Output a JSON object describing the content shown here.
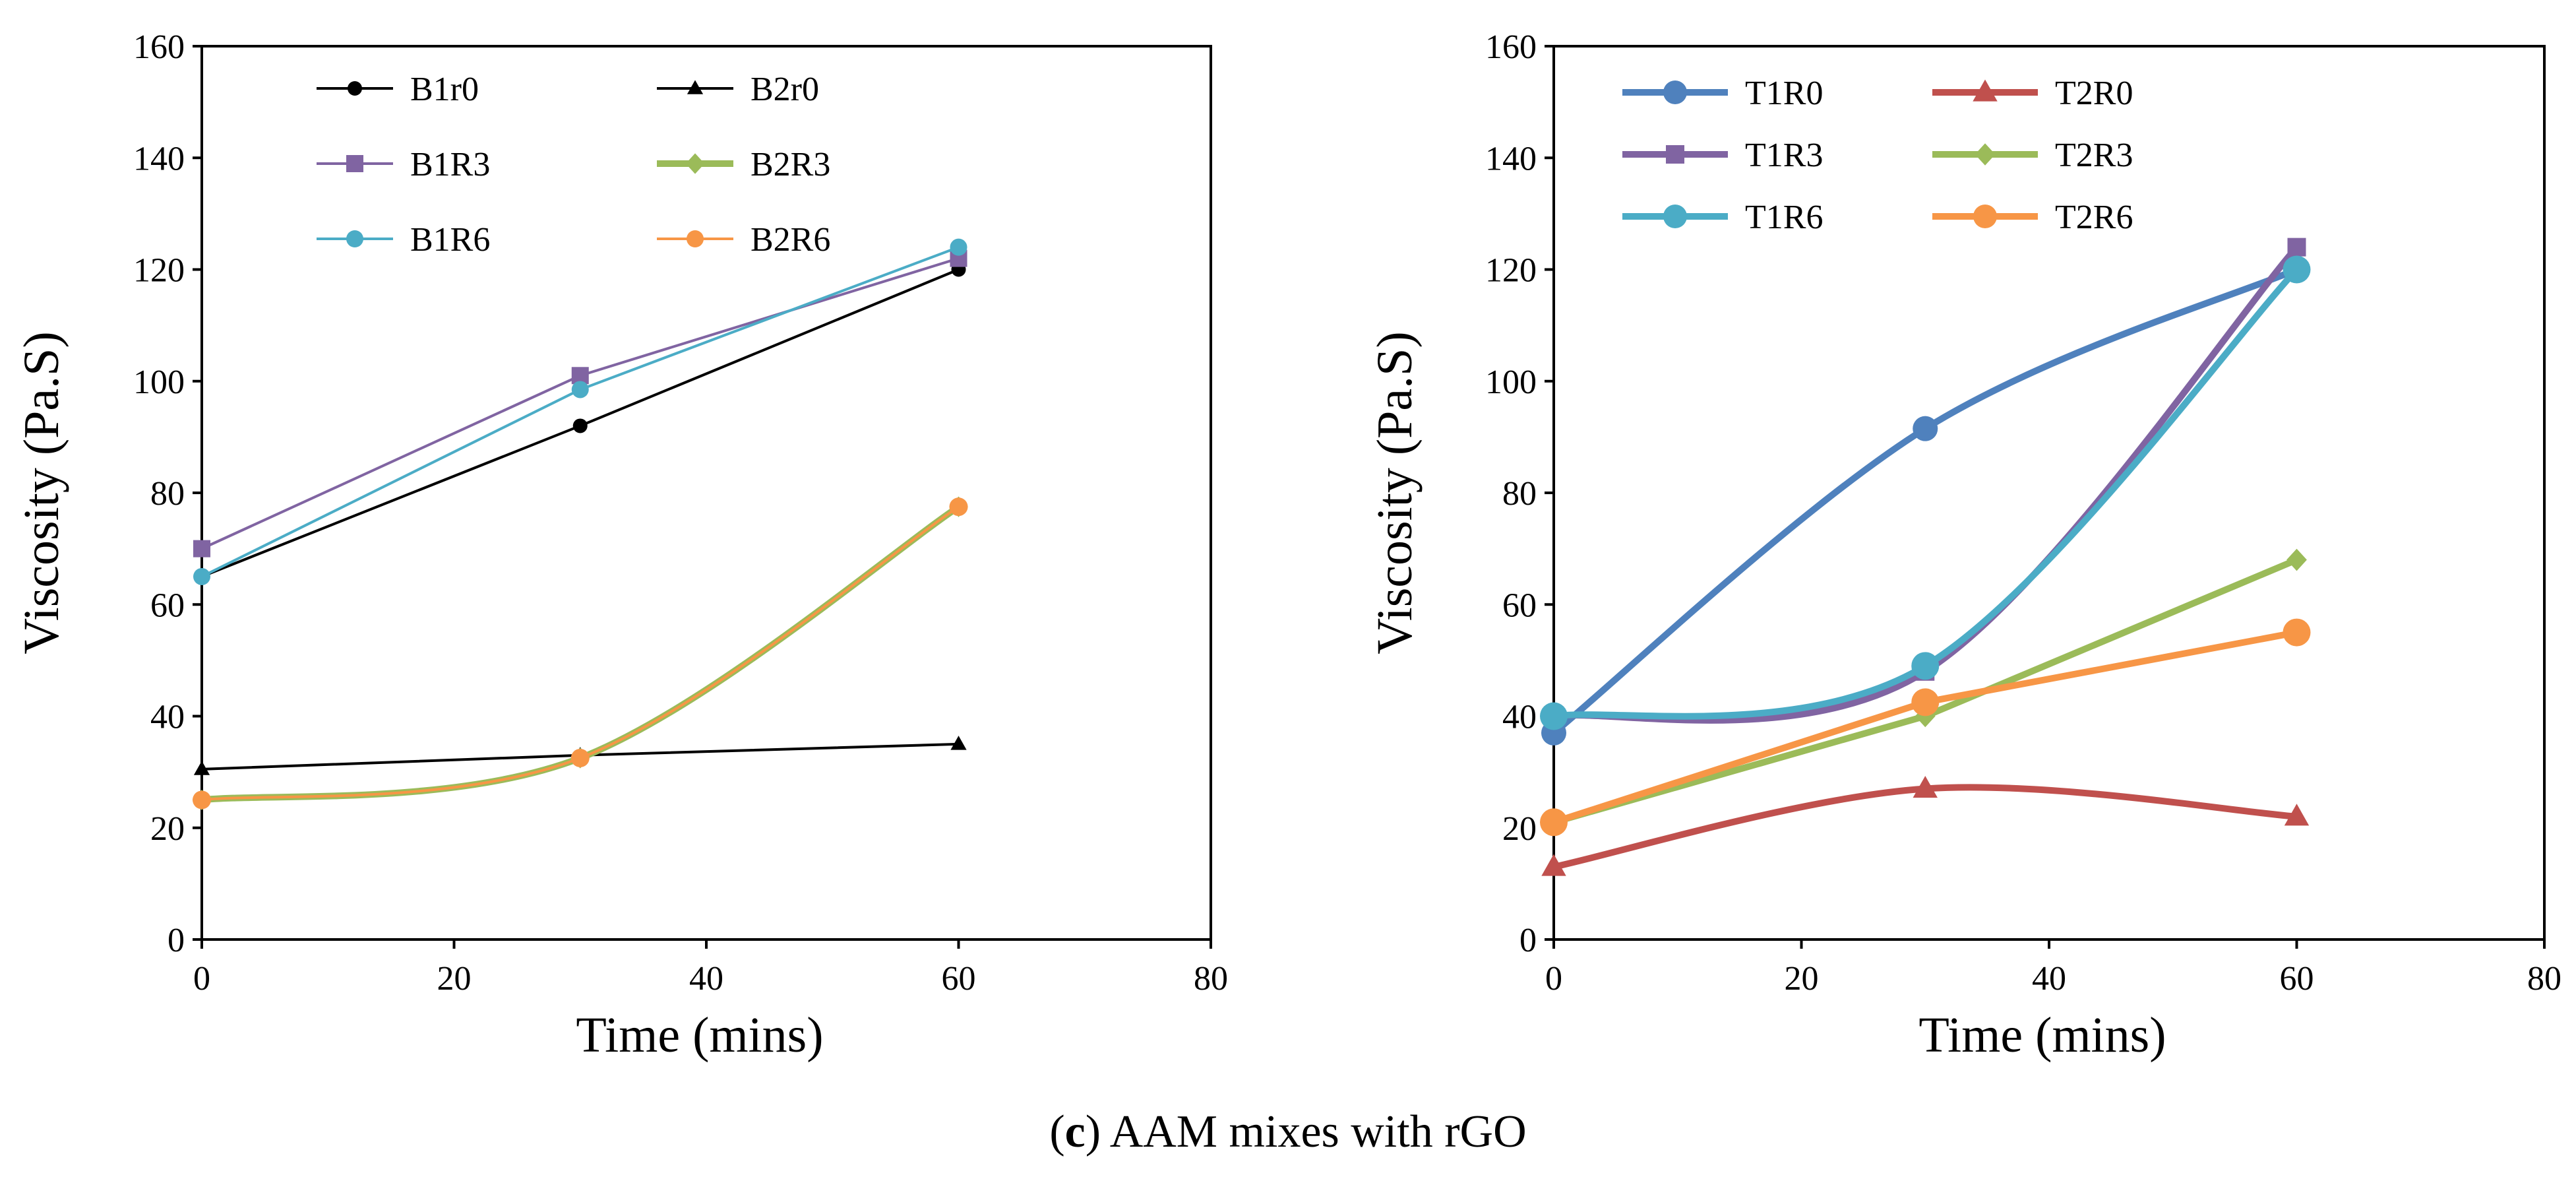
{
  "caption": {
    "label": "(c)",
    "prefix": "(",
    "letter": "c",
    "suffix": ")",
    "text": "AAM mixes with rGO"
  },
  "chart_data": [
    {
      "type": "line",
      "title": "",
      "xlabel": "Time (mins)",
      "ylabel": "Viscosity (Pa.S)",
      "xlim": [
        0,
        80
      ],
      "ylim": [
        0,
        160
      ],
      "xticks": [
        0,
        20,
        40,
        60,
        80
      ],
      "yticks": [
        0,
        20,
        40,
        60,
        80,
        100,
        120,
        140,
        160
      ],
      "grid": false,
      "legend_position": "top",
      "x": [
        0,
        30,
        60
      ],
      "series": [
        {
          "name": "B1r0",
          "values": [
            65,
            92,
            120
          ],
          "color": "#000000",
          "marker": "circle",
          "smooth": false
        },
        {
          "name": "B2r0",
          "values": [
            30.5,
            33,
            35
          ],
          "color": "#000000",
          "marker": "triangle",
          "smooth": false
        },
        {
          "name": "B1R3",
          "values": [
            70,
            101,
            122
          ],
          "color": "#8064a2",
          "marker": "square",
          "smooth": false
        },
        {
          "name": "B2R3",
          "values": [
            25,
            32.5,
            77.5
          ],
          "color": "#9bbb59",
          "marker": "diamond",
          "smooth": true
        },
        {
          "name": "B1R6",
          "values": [
            65,
            98.5,
            124
          ],
          "color": "#4bacc6",
          "marker": "circle",
          "smooth": false
        },
        {
          "name": "B2R6",
          "values": [
            25,
            32.5,
            77.5
          ],
          "color": "#f79646",
          "marker": "circle",
          "smooth": true
        }
      ]
    },
    {
      "type": "line",
      "title": "",
      "xlabel": "Time (mins)",
      "ylabel": "Viscosity (Pa.S)",
      "xlim": [
        0,
        80
      ],
      "ylim": [
        0,
        160
      ],
      "xticks": [
        0,
        20,
        40,
        60,
        80
      ],
      "yticks": [
        0,
        20,
        40,
        60,
        80,
        100,
        120,
        140,
        160
      ],
      "grid": false,
      "legend_position": "top",
      "x": [
        0,
        30,
        60
      ],
      "series": [
        {
          "name": "T1R0",
          "values": [
            37,
            91.5,
            120
          ],
          "color": "#4f81bd",
          "marker": "circle",
          "smooth": true
        },
        {
          "name": "T2R0",
          "values": [
            13,
            27,
            22
          ],
          "color": "#c0504d",
          "marker": "triangle",
          "smooth": true
        },
        {
          "name": "T1R3",
          "values": [
            40,
            48,
            124
          ],
          "color": "#8064a2",
          "marker": "square",
          "smooth": true
        },
        {
          "name": "T2R3",
          "values": [
            21,
            40,
            68
          ],
          "color": "#9bbb59",
          "marker": "diamond",
          "smooth": false
        },
        {
          "name": "T1R6",
          "values": [
            40,
            49,
            120
          ],
          "color": "#4bacc6",
          "marker": "circle",
          "smooth": true
        },
        {
          "name": "T2R6",
          "values": [
            21,
            42.5,
            55
          ],
          "color": "#f79646",
          "marker": "circle",
          "smooth": false
        }
      ]
    }
  ]
}
